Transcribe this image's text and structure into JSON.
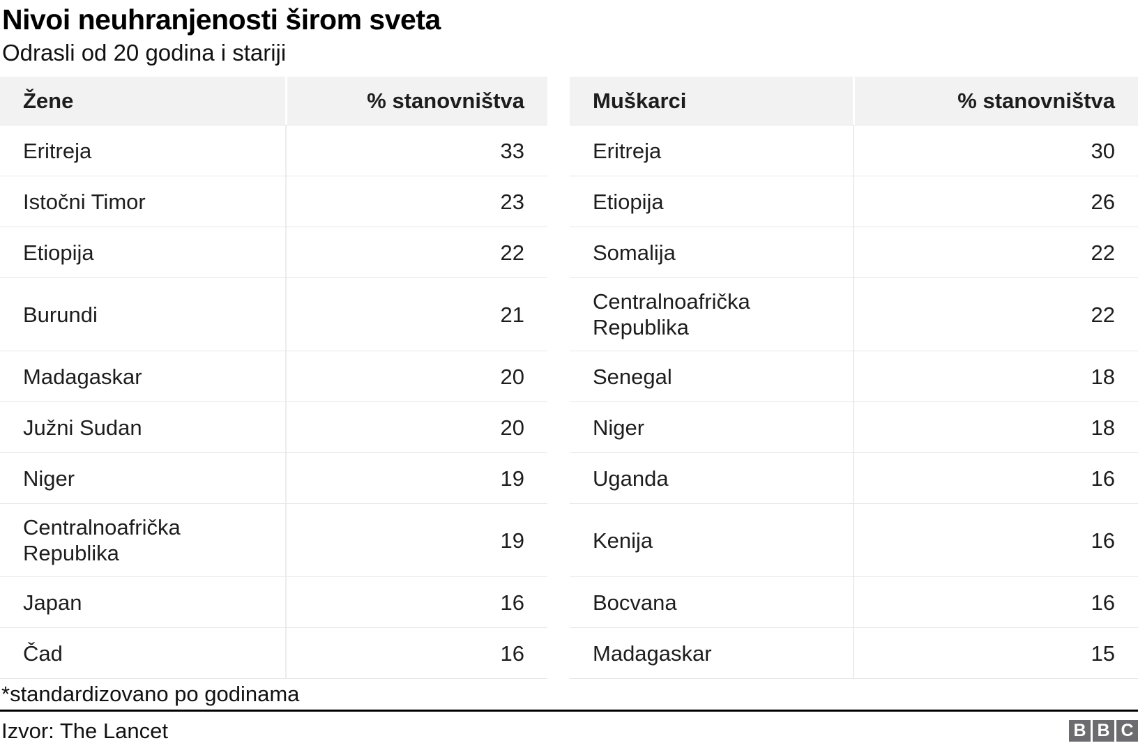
{
  "header": {
    "title": "Nivoi neuhranjenosti širom sveta",
    "subtitle": "Odrasli od 20 godina i stariji"
  },
  "chart_data": {
    "type": "table",
    "title": "Nivoi neuhranjenosti širom sveta",
    "subtitle": "Odrasli od 20 godina i stariji",
    "unit": "% stanovništva",
    "tables": [
      {
        "group": "Žene",
        "value_header": "% stanovništva",
        "rows": [
          {
            "country": "Eritreja",
            "value": 33
          },
          {
            "country": "Istočni Timor",
            "value": 23
          },
          {
            "country": "Etiopija",
            "value": 22
          },
          {
            "country": "Burundi",
            "value": 21
          },
          {
            "country": "Madagaskar",
            "value": 20
          },
          {
            "country": "Južni Sudan",
            "value": 20
          },
          {
            "country": "Niger",
            "value": 19
          },
          {
            "country": "Centralnoafrička Republika",
            "value": 19
          },
          {
            "country": "Japan",
            "value": 16
          },
          {
            "country": "Čad",
            "value": 16
          }
        ]
      },
      {
        "group": "Muškarci",
        "value_header": "% stanovništva",
        "rows": [
          {
            "country": "Eritreja",
            "value": 30
          },
          {
            "country": "Etiopija",
            "value": 26
          },
          {
            "country": "Somalija",
            "value": 22
          },
          {
            "country": "Centralnoafrička Republika",
            "value": 22
          },
          {
            "country": "Senegal",
            "value": 18
          },
          {
            "country": "Niger",
            "value": 18
          },
          {
            "country": "Uganda",
            "value": 16
          },
          {
            "country": "Kenija",
            "value": 16
          },
          {
            "country": "Bocvana",
            "value": 16
          },
          {
            "country": "Madagaskar",
            "value": 15
          }
        ]
      }
    ]
  },
  "footer": {
    "footnote": "*standardizovano po godinama",
    "source": "Izvor: The Lancet",
    "logo_letters": [
      "B",
      "B",
      "C"
    ]
  },
  "colors": {
    "header_bg": "#f2f2f2",
    "row_border": "#e6e6e6",
    "text": "#1d1d1d",
    "rule": "#000000",
    "logo_bg": "#6b6b70"
  }
}
